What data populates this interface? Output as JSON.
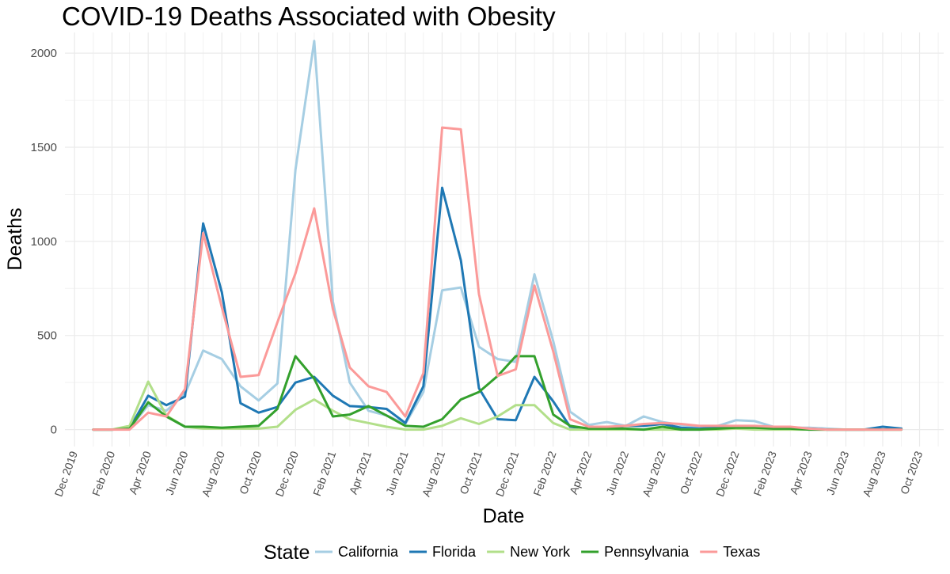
{
  "chart_data": {
    "type": "line",
    "title": "COVID-19 Deaths Associated with Obesity",
    "xlabel": "Date",
    "ylabel": "Deaths",
    "legend_title": "State",
    "legend_position": "bottom",
    "grid": true,
    "ylim": [
      -90,
      2110
    ],
    "y_ticks": [
      0,
      500,
      1000,
      1500,
      2000
    ],
    "xlim": [
      "2019-11-15",
      "2023-11-10"
    ],
    "x_ticks": [
      {
        "date": "2019-12-01",
        "label": "Dec 2019"
      },
      {
        "date": "2020-02-01",
        "label": "Feb 2020"
      },
      {
        "date": "2020-04-01",
        "label": "Apr 2020"
      },
      {
        "date": "2020-06-01",
        "label": "Jun 2020"
      },
      {
        "date": "2020-08-01",
        "label": "Aug 2020"
      },
      {
        "date": "2020-10-01",
        "label": "Oct 2020"
      },
      {
        "date": "2020-12-01",
        "label": "Dec 2020"
      },
      {
        "date": "2021-02-01",
        "label": "Feb 2021"
      },
      {
        "date": "2021-04-01",
        "label": "Apr 2021"
      },
      {
        "date": "2021-06-01",
        "label": "Jun 2021"
      },
      {
        "date": "2021-08-01",
        "label": "Aug 2021"
      },
      {
        "date": "2021-10-01",
        "label": "Oct 2021"
      },
      {
        "date": "2021-12-01",
        "label": "Dec 2021"
      },
      {
        "date": "2022-02-01",
        "label": "Feb 2022"
      },
      {
        "date": "2022-04-01",
        "label": "Apr 2022"
      },
      {
        "date": "2022-06-01",
        "label": "Jun 2022"
      },
      {
        "date": "2022-08-01",
        "label": "Aug 2022"
      },
      {
        "date": "2022-10-01",
        "label": "Oct 2022"
      },
      {
        "date": "2022-12-01",
        "label": "Dec 2022"
      },
      {
        "date": "2023-02-01",
        "label": "Feb 2023"
      },
      {
        "date": "2023-04-01",
        "label": "Apr 2023"
      },
      {
        "date": "2023-06-01",
        "label": "Jun 2023"
      },
      {
        "date": "2023-08-01",
        "label": "Aug 2023"
      },
      {
        "date": "2023-10-01",
        "label": "Oct 2023"
      }
    ],
    "x": [
      "2020-01-01",
      "2020-02-01",
      "2020-03-01",
      "2020-04-01",
      "2020-05-01",
      "2020-06-01",
      "2020-07-01",
      "2020-08-01",
      "2020-09-01",
      "2020-10-01",
      "2020-11-01",
      "2020-12-01",
      "2021-01-01",
      "2021-02-01",
      "2021-03-01",
      "2021-04-01",
      "2021-05-01",
      "2021-06-01",
      "2021-07-01",
      "2021-08-01",
      "2021-09-01",
      "2021-10-01",
      "2021-11-01",
      "2021-12-01",
      "2022-01-01",
      "2022-02-01",
      "2022-03-01",
      "2022-04-01",
      "2022-05-01",
      "2022-06-01",
      "2022-07-01",
      "2022-08-01",
      "2022-09-01",
      "2022-10-01",
      "2022-11-01",
      "2022-12-01",
      "2023-01-01",
      "2023-02-01",
      "2023-03-01",
      "2023-04-01",
      "2023-05-01",
      "2023-06-01",
      "2023-07-01",
      "2023-08-01",
      "2023-09-01"
    ],
    "series": [
      {
        "name": "California",
        "color": "#a6cee3",
        "values": [
          0,
          0,
          5,
          130,
          100,
          190,
          420,
          375,
          230,
          155,
          245,
          1380,
          2065,
          680,
          250,
          100,
          75,
          30,
          200,
          740,
          755,
          440,
          375,
          360,
          825,
          470,
          95,
          25,
          40,
          20,
          70,
          40,
          25,
          15,
          20,
          50,
          45,
          15,
          10,
          10,
          5,
          0,
          0,
          0,
          0
        ]
      },
      {
        "name": "Florida",
        "color": "#1f78b4",
        "values": [
          0,
          0,
          5,
          180,
          130,
          175,
          1095,
          730,
          140,
          90,
          120,
          250,
          280,
          180,
          125,
          120,
          110,
          35,
          230,
          1285,
          900,
          220,
          55,
          50,
          280,
          150,
          15,
          5,
          5,
          20,
          20,
          30,
          10,
          5,
          10,
          15,
          15,
          5,
          5,
          5,
          0,
          0,
          0,
          15,
          5
        ]
      },
      {
        "name": "New York",
        "color": "#b2df8a",
        "values": [
          0,
          0,
          20,
          255,
          75,
          15,
          5,
          5,
          5,
          5,
          15,
          105,
          160,
          100,
          55,
          35,
          15,
          0,
          0,
          20,
          60,
          30,
          70,
          130,
          130,
          35,
          0,
          0,
          0,
          0,
          0,
          0,
          0,
          0,
          0,
          5,
          0,
          0,
          0,
          0,
          0,
          0,
          0,
          0,
          0
        ]
      },
      {
        "name": "Pennsylvania",
        "color": "#33a02c",
        "values": [
          0,
          0,
          5,
          145,
          70,
          15,
          15,
          10,
          15,
          20,
          110,
          390,
          270,
          70,
          80,
          125,
          75,
          20,
          15,
          55,
          160,
          200,
          285,
          390,
          390,
          80,
          20,
          5,
          5,
          5,
          0,
          15,
          0,
          0,
          5,
          10,
          10,
          5,
          5,
          0,
          0,
          0,
          0,
          0,
          0
        ]
      },
      {
        "name": "Texas",
        "color": "#fb9a99",
        "values": [
          0,
          0,
          0,
          90,
          70,
          215,
          1045,
          650,
          280,
          290,
          570,
          830,
          1175,
          640,
          330,
          230,
          200,
          70,
          300,
          1605,
          1595,
          720,
          285,
          320,
          765,
          415,
          55,
          15,
          15,
          20,
          30,
          35,
          30,
          20,
          20,
          20,
          20,
          15,
          15,
          5,
          0,
          0,
          0,
          0,
          0
        ]
      }
    ]
  }
}
